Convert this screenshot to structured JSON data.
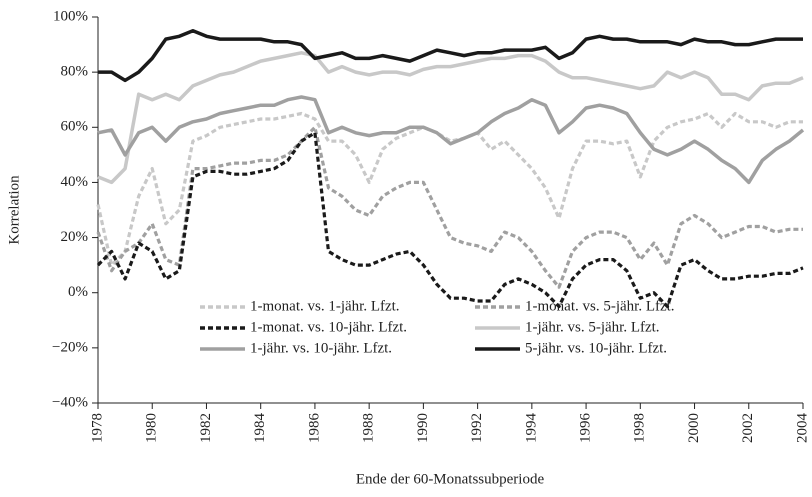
{
  "chart_data": {
    "type": "line",
    "xlabel": "Ende der 60-Monatssubperiode",
    "ylabel": "Korrelation",
    "x": [
      1978,
      1978.5,
      1979,
      1979.5,
      1980,
      1980.5,
      1981,
      1981.5,
      1982,
      1982.5,
      1983,
      1983.5,
      1984,
      1984.5,
      1985,
      1985.5,
      1986,
      1986.5,
      1987,
      1987.5,
      1988,
      1988.5,
      1989,
      1989.5,
      1990,
      1990.5,
      1991,
      1991.5,
      1992,
      1992.5,
      1993,
      1993.5,
      1994,
      1994.5,
      1995,
      1995.5,
      1996,
      1996.5,
      1997,
      1997.5,
      1998,
      1998.5,
      1999,
      1999.5,
      2000,
      2000.5,
      2001,
      2001.5,
      2002,
      2002.5,
      2003,
      2003.5,
      2004
    ],
    "xlim": [
      1978,
      2004
    ],
    "xticks": [
      1978,
      1980,
      1982,
      1984,
      1986,
      1988,
      1990,
      1992,
      1994,
      1996,
      1998,
      2000,
      2002,
      2004
    ],
    "ylim": [
      -40,
      100
    ],
    "yticks": [
      {
        "value": -40,
        "label": "−40%"
      },
      {
        "value": -20,
        "label": "−20%"
      },
      {
        "value": 0,
        "label": "0%"
      },
      {
        "value": 20,
        "label": "20%"
      },
      {
        "value": 40,
        "label": "40%"
      },
      {
        "value": 60,
        "label": "60%"
      },
      {
        "value": 80,
        "label": "80%"
      },
      {
        "value": 100,
        "label": "100%"
      }
    ],
    "grid": false,
    "series": [
      {
        "name": "1-monat. vs. 1-jähr. Lfzt.",
        "color": "#c8c8c8",
        "dash": true,
        "values": [
          32,
          10,
          15,
          35,
          45,
          25,
          30,
          55,
          57,
          60,
          61,
          62,
          63,
          63,
          64,
          65,
          63,
          55,
          55,
          50,
          40,
          52,
          56,
          58,
          60,
          58,
          55,
          56,
          58,
          52,
          55,
          50,
          45,
          38,
          27,
          45,
          55,
          55,
          54,
          55,
          42,
          55,
          60,
          62,
          63,
          65,
          60,
          65,
          62,
          62,
          60,
          62,
          62
        ]
      },
      {
        "name": "1-monat. vs. 5-jähr. Lfzt.",
        "color": "#a0a0a0",
        "dash": true,
        "values": [
          22,
          8,
          15,
          18,
          25,
          12,
          10,
          45,
          45,
          46,
          47,
          47,
          48,
          48,
          50,
          55,
          60,
          38,
          35,
          30,
          28,
          35,
          38,
          40,
          40,
          30,
          20,
          18,
          17,
          15,
          22,
          20,
          15,
          8,
          2,
          15,
          20,
          22,
          22,
          20,
          12,
          18,
          10,
          25,
          28,
          25,
          20,
          22,
          24,
          24,
          22,
          23,
          23
        ]
      },
      {
        "name": "1-monat. vs. 10-jähr. Lfzt.",
        "color": "#1a1a1a",
        "dash": true,
        "values": [
          10,
          15,
          5,
          18,
          15,
          5,
          8,
          42,
          44,
          44,
          43,
          43,
          44,
          45,
          48,
          55,
          58,
          15,
          12,
          10,
          10,
          12,
          14,
          15,
          10,
          3,
          -2,
          -2,
          -3,
          -3,
          3,
          5,
          3,
          0,
          -5,
          5,
          10,
          12,
          12,
          8,
          -2,
          0,
          -5,
          10,
          12,
          8,
          5,
          5,
          6,
          6,
          7,
          7,
          9
        ]
      },
      {
        "name": "1-jähr. vs. 5-jähr. Lfzt.",
        "color": "#c8c8c8",
        "dash": false,
        "values": [
          42,
          40,
          45,
          72,
          70,
          72,
          70,
          75,
          77,
          79,
          80,
          82,
          84,
          85,
          86,
          87,
          86,
          80,
          82,
          80,
          79,
          80,
          80,
          79,
          81,
          82,
          82,
          83,
          84,
          85,
          85,
          86,
          86,
          84,
          80,
          78,
          78,
          77,
          76,
          75,
          74,
          75,
          80,
          78,
          80,
          78,
          72,
          72,
          70,
          75,
          76,
          76,
          78
        ]
      },
      {
        "name": "1-jähr. vs. 10-jähr. Lfzt.",
        "color": "#a0a0a0",
        "dash": false,
        "values": [
          58,
          59,
          50,
          58,
          60,
          55,
          60,
          62,
          63,
          65,
          66,
          67,
          68,
          68,
          70,
          71,
          70,
          58,
          60,
          58,
          57,
          58,
          58,
          60,
          60,
          58,
          54,
          56,
          58,
          62,
          65,
          67,
          70,
          68,
          58,
          62,
          67,
          68,
          67,
          65,
          58,
          52,
          50,
          52,
          55,
          52,
          48,
          45,
          40,
          48,
          52,
          55,
          59
        ]
      },
      {
        "name": "5-jähr. vs. 10-jähr. Lfzt.",
        "color": "#1a1a1a",
        "dash": false,
        "values": [
          80,
          80,
          77,
          80,
          85,
          92,
          93,
          95,
          93,
          92,
          92,
          92,
          92,
          91,
          91,
          90,
          85,
          86,
          87,
          85,
          85,
          86,
          85,
          84,
          86,
          88,
          87,
          86,
          87,
          87,
          88,
          88,
          88,
          89,
          85,
          87,
          92,
          93,
          92,
          92,
          91,
          91,
          91,
          90,
          92,
          91,
          91,
          90,
          90,
          91,
          92,
          92,
          92
        ]
      }
    ]
  }
}
